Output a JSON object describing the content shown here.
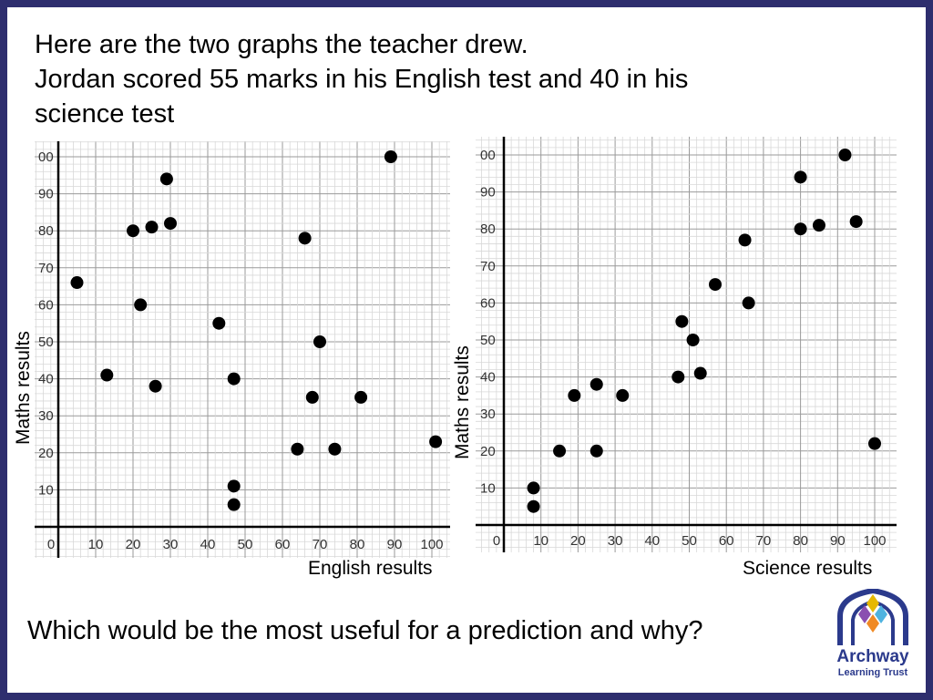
{
  "header": {
    "line1": "Here are the two graphs the teacher drew.",
    "line2": "Jordan scored 55 marks in his English test and 40 in his",
    "line3": "science test"
  },
  "question": "Which would be the most useful for a prediction and why?",
  "logo": {
    "name": "Archway",
    "subtitle": "Learning Trust",
    "colors": [
      "#2b3a8c",
      "#e6b800",
      "#f08a24",
      "#8a4fb0",
      "#4fb3e0"
    ]
  },
  "chart_data": [
    {
      "type": "scatter",
      "xlabel": "English results",
      "ylabel": "Maths results",
      "xlim": [
        0,
        100
      ],
      "ylim": [
        0,
        100
      ],
      "grid": true,
      "x_ticks": [
        "0",
        "10",
        "20",
        "30",
        "40",
        "50",
        "60",
        "70",
        "80",
        "90",
        "100"
      ],
      "y_ticks": [
        "10",
        "20",
        "30",
        "40",
        "50",
        "60",
        "70",
        "80",
        "90",
        "00"
      ],
      "x": [
        5,
        13,
        20,
        22,
        25,
        26,
        29,
        30,
        43,
        47,
        47,
        47,
        64,
        66,
        68,
        70,
        74,
        81,
        89,
        101
      ],
      "y": [
        66,
        41,
        80,
        60,
        81,
        38,
        94,
        82,
        55,
        40,
        11,
        6,
        21,
        78,
        35,
        50,
        21,
        35,
        100,
        23
      ]
    },
    {
      "type": "scatter",
      "xlabel": "Science results",
      "ylabel": "Maths results",
      "xlim": [
        0,
        100
      ],
      "ylim": [
        0,
        100
      ],
      "grid": true,
      "x_ticks": [
        "0",
        "10",
        "20",
        "30",
        "40",
        "50",
        "60",
        "70",
        "80",
        "90",
        "100"
      ],
      "y_ticks": [
        "10",
        "20",
        "30",
        "40",
        "50",
        "60",
        "70",
        "80",
        "90",
        "00"
      ],
      "x": [
        8,
        8,
        15,
        19,
        25,
        25,
        32,
        47,
        48,
        51,
        53,
        57,
        65,
        66,
        80,
        80,
        85,
        92,
        95,
        100
      ],
      "y": [
        10,
        5,
        20,
        35,
        38,
        20,
        35,
        40,
        55,
        50,
        41,
        65,
        77,
        60,
        94,
        80,
        81,
        100,
        82,
        22
      ]
    }
  ]
}
